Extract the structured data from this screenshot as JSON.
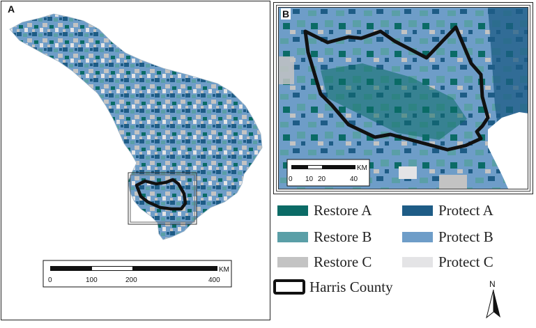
{
  "panels": {
    "a_label": "A",
    "b_label": "B"
  },
  "scalebar_a": {
    "ticks": [
      "0",
      "100",
      "200",
      "400"
    ],
    "unit": "KM"
  },
  "scalebar_b": {
    "ticks": [
      "0",
      "10",
      "20",
      "40"
    ],
    "unit": "KM"
  },
  "legend": {
    "items": [
      {
        "label": "Restore A",
        "color": "#0b6b66"
      },
      {
        "label": "Protect A",
        "color": "#1e5c86"
      },
      {
        "label": "Restore B",
        "color": "#5a9fa7"
      },
      {
        "label": "Protect B",
        "color": "#6e9dc8"
      },
      {
        "label": "Restore C",
        "color": "#c3c3c3"
      },
      {
        "label": "Protect C",
        "color": "#e4e4e6"
      }
    ],
    "county_label": "Harris County"
  },
  "north_arrow": {
    "label": "N"
  },
  "colors": {
    "boundary": "#111111",
    "water": "#ffffff"
  }
}
